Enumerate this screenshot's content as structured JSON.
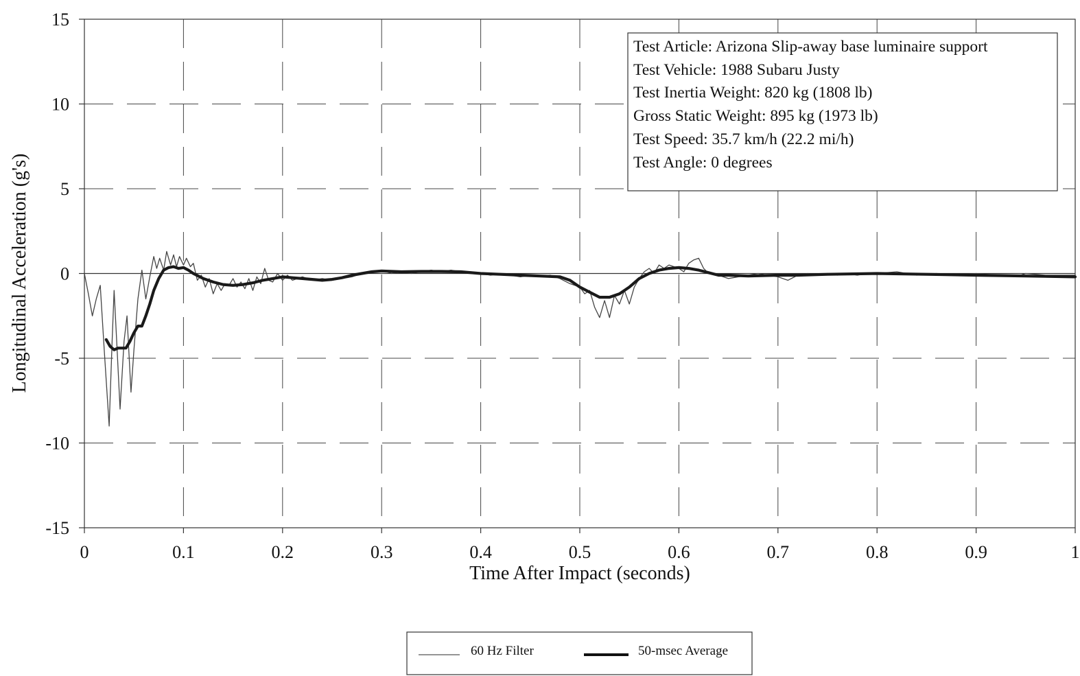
{
  "chart_data": {
    "type": "line",
    "xlabel": "Time After Impact (seconds)",
    "ylabel": "Longitudinal Acceleration (g's)",
    "xlim": [
      0,
      1
    ],
    "ylim": [
      -15,
      15
    ],
    "xticks": [
      0,
      0.1,
      0.2,
      0.3,
      0.4,
      0.5,
      0.6,
      0.7,
      0.8,
      0.9,
      1
    ],
    "xtick_labels": [
      "0",
      "0.1",
      "0.2",
      "0.3",
      "0.4",
      "0.5",
      "0.6",
      "0.7",
      "0.8",
      "0.9",
      "1"
    ],
    "yticks": [
      15,
      10,
      5,
      0,
      -5,
      -10,
      -15
    ],
    "ytick_labels": [
      "15",
      "10",
      "5",
      "0",
      "-5",
      "-10",
      "-15"
    ],
    "grid": "dashed",
    "legend_position": "bottom-center",
    "annotation": [
      "Test Article:  Arizona Slip-away base luminaire support",
      "Test Vehicle:  1988 Subaru Justy",
      "Test Inertia Weight:  820 kg (1808 lb)",
      "Gross Static Weight:  895 kg (1973 lb)",
      "Test Speed:  35.7 km/h (22.2 mi/h)",
      "Test Angle:  0 degrees"
    ],
    "series": [
      {
        "name": "60 Hz Filter",
        "style": "thin",
        "color": "#444444",
        "points": [
          [
            0,
            0
          ],
          [
            0.004,
            -1.2
          ],
          [
            0.008,
            -2.5
          ],
          [
            0.012,
            -1.5
          ],
          [
            0.016,
            -0.7
          ],
          [
            0.02,
            -4.5
          ],
          [
            0.025,
            -9.0
          ],
          [
            0.028,
            -4.0
          ],
          [
            0.03,
            -1.0
          ],
          [
            0.033,
            -4.5
          ],
          [
            0.036,
            -8.0
          ],
          [
            0.04,
            -4.0
          ],
          [
            0.043,
            -2.5
          ],
          [
            0.047,
            -7.0
          ],
          [
            0.05,
            -4.5
          ],
          [
            0.054,
            -1.5
          ],
          [
            0.058,
            0.2
          ],
          [
            0.062,
            -1.5
          ],
          [
            0.066,
            -0.2
          ],
          [
            0.07,
            1.0
          ],
          [
            0.073,
            0.3
          ],
          [
            0.076,
            0.9
          ],
          [
            0.08,
            0.2
          ],
          [
            0.083,
            1.3
          ],
          [
            0.087,
            0.5
          ],
          [
            0.09,
            1.1
          ],
          [
            0.093,
            0.4
          ],
          [
            0.096,
            1.0
          ],
          [
            0.1,
            0.5
          ],
          [
            0.103,
            0.9
          ],
          [
            0.107,
            0.4
          ],
          [
            0.11,
            0.6
          ],
          [
            0.114,
            -0.4
          ],
          [
            0.118,
            -0.1
          ],
          [
            0.122,
            -0.8
          ],
          [
            0.126,
            -0.3
          ],
          [
            0.13,
            -1.2
          ],
          [
            0.134,
            -0.6
          ],
          [
            0.138,
            -1.0
          ],
          [
            0.142,
            -0.6
          ],
          [
            0.146,
            -0.7
          ],
          [
            0.15,
            -0.3
          ],
          [
            0.154,
            -0.8
          ],
          [
            0.158,
            -0.5
          ],
          [
            0.162,
            -0.9
          ],
          [
            0.166,
            -0.3
          ],
          [
            0.17,
            -1.0
          ],
          [
            0.174,
            -0.2
          ],
          [
            0.178,
            -0.6
          ],
          [
            0.182,
            0.3
          ],
          [
            0.186,
            -0.4
          ],
          [
            0.19,
            -0.5
          ],
          [
            0.195,
            0.0
          ],
          [
            0.2,
            -0.4
          ],
          [
            0.205,
            -0.1
          ],
          [
            0.21,
            -0.4
          ],
          [
            0.22,
            -0.2
          ],
          [
            0.23,
            -0.4
          ],
          [
            0.24,
            -0.3
          ],
          [
            0.25,
            -0.4
          ],
          [
            0.26,
            -0.3
          ],
          [
            0.27,
            -0.2
          ],
          [
            0.28,
            0.0
          ],
          [
            0.29,
            0.1
          ],
          [
            0.3,
            0.2
          ],
          [
            0.31,
            0.0
          ],
          [
            0.32,
            0.1
          ],
          [
            0.33,
            0.0
          ],
          [
            0.34,
            0.1
          ],
          [
            0.35,
            0.2
          ],
          [
            0.36,
            0.1
          ],
          [
            0.37,
            0.2
          ],
          [
            0.38,
            0.1
          ],
          [
            0.39,
            0.0
          ],
          [
            0.4,
            0.0
          ],
          [
            0.41,
            -0.1
          ],
          [
            0.42,
            0.0
          ],
          [
            0.43,
            -0.1
          ],
          [
            0.44,
            -0.2
          ],
          [
            0.45,
            -0.1
          ],
          [
            0.46,
            -0.2
          ],
          [
            0.47,
            -0.1
          ],
          [
            0.48,
            -0.3
          ],
          [
            0.49,
            -0.6
          ],
          [
            0.5,
            -0.8
          ],
          [
            0.505,
            -1.2
          ],
          [
            0.51,
            -1.0
          ],
          [
            0.515,
            -2.0
          ],
          [
            0.52,
            -2.6
          ],
          [
            0.525,
            -1.6
          ],
          [
            0.53,
            -2.6
          ],
          [
            0.535,
            -1.3
          ],
          [
            0.54,
            -1.8
          ],
          [
            0.545,
            -1.0
          ],
          [
            0.55,
            -1.8
          ],
          [
            0.555,
            -0.8
          ],
          [
            0.56,
            -0.3
          ],
          [
            0.565,
            0.1
          ],
          [
            0.57,
            0.3
          ],
          [
            0.575,
            0.0
          ],
          [
            0.58,
            0.5
          ],
          [
            0.585,
            0.3
          ],
          [
            0.59,
            0.5
          ],
          [
            0.595,
            0.4
          ],
          [
            0.6,
            0.3
          ],
          [
            0.605,
            0.1
          ],
          [
            0.61,
            0.6
          ],
          [
            0.615,
            0.8
          ],
          [
            0.62,
            0.9
          ],
          [
            0.625,
            0.3
          ],
          [
            0.63,
            0.0
          ],
          [
            0.64,
            -0.1
          ],
          [
            0.65,
            -0.3
          ],
          [
            0.66,
            -0.2
          ],
          [
            0.67,
            -0.1
          ],
          [
            0.68,
            0.0
          ],
          [
            0.69,
            -0.1
          ],
          [
            0.7,
            -0.2
          ],
          [
            0.71,
            -0.4
          ],
          [
            0.72,
            -0.1
          ],
          [
            0.73,
            0.0
          ],
          [
            0.74,
            -0.1
          ],
          [
            0.75,
            0.0
          ],
          [
            0.76,
            -0.1
          ],
          [
            0.77,
            0.0
          ],
          [
            0.78,
            -0.1
          ],
          [
            0.79,
            0.0
          ],
          [
            0.8,
            0.0
          ],
          [
            0.82,
            0.1
          ],
          [
            0.84,
            -0.1
          ],
          [
            0.86,
            0.0
          ],
          [
            0.88,
            -0.1
          ],
          [
            0.9,
            0.0
          ],
          [
            0.92,
            -0.1
          ],
          [
            0.94,
            -0.2
          ],
          [
            0.95,
            0.0
          ],
          [
            0.97,
            -0.1
          ],
          [
            1.0,
            -0.1
          ]
        ]
      },
      {
        "name": "50-msec Average",
        "style": "thick",
        "color": "#1a1a1a",
        "points": [
          [
            0.022,
            -3.9
          ],
          [
            0.026,
            -4.3
          ],
          [
            0.03,
            -4.5
          ],
          [
            0.034,
            -4.4
          ],
          [
            0.038,
            -4.4
          ],
          [
            0.042,
            -4.4
          ],
          [
            0.046,
            -4.0
          ],
          [
            0.05,
            -3.5
          ],
          [
            0.054,
            -3.1
          ],
          [
            0.058,
            -3.1
          ],
          [
            0.062,
            -2.5
          ],
          [
            0.066,
            -1.8
          ],
          [
            0.07,
            -1.0
          ],
          [
            0.075,
            -0.3
          ],
          [
            0.08,
            0.2
          ],
          [
            0.085,
            0.35
          ],
          [
            0.09,
            0.4
          ],
          [
            0.095,
            0.3
          ],
          [
            0.1,
            0.35
          ],
          [
            0.105,
            0.2
          ],
          [
            0.11,
            0.0
          ],
          [
            0.12,
            -0.3
          ],
          [
            0.13,
            -0.5
          ],
          [
            0.14,
            -0.65
          ],
          [
            0.15,
            -0.7
          ],
          [
            0.16,
            -0.65
          ],
          [
            0.17,
            -0.55
          ],
          [
            0.18,
            -0.4
          ],
          [
            0.19,
            -0.3
          ],
          [
            0.2,
            -0.2
          ],
          [
            0.21,
            -0.25
          ],
          [
            0.22,
            -0.3
          ],
          [
            0.23,
            -0.35
          ],
          [
            0.24,
            -0.4
          ],
          [
            0.25,
            -0.35
          ],
          [
            0.26,
            -0.25
          ],
          [
            0.27,
            -0.1
          ],
          [
            0.28,
            0.0
          ],
          [
            0.29,
            0.1
          ],
          [
            0.3,
            0.15
          ],
          [
            0.32,
            0.1
          ],
          [
            0.34,
            0.12
          ],
          [
            0.36,
            0.12
          ],
          [
            0.38,
            0.1
          ],
          [
            0.4,
            0.0
          ],
          [
            0.42,
            -0.05
          ],
          [
            0.44,
            -0.1
          ],
          [
            0.46,
            -0.15
          ],
          [
            0.48,
            -0.2
          ],
          [
            0.49,
            -0.4
          ],
          [
            0.5,
            -0.8
          ],
          [
            0.51,
            -1.1
          ],
          [
            0.52,
            -1.4
          ],
          [
            0.53,
            -1.4
          ],
          [
            0.54,
            -1.2
          ],
          [
            0.55,
            -0.8
          ],
          [
            0.56,
            -0.3
          ],
          [
            0.57,
            0.0
          ],
          [
            0.58,
            0.2
          ],
          [
            0.59,
            0.3
          ],
          [
            0.6,
            0.35
          ],
          [
            0.61,
            0.3
          ],
          [
            0.62,
            0.2
          ],
          [
            0.63,
            0.05
          ],
          [
            0.64,
            -0.1
          ],
          [
            0.65,
            -0.1
          ],
          [
            0.67,
            -0.15
          ],
          [
            0.7,
            -0.1
          ],
          [
            0.72,
            -0.1
          ],
          [
            0.75,
            -0.05
          ],
          [
            0.8,
            0.0
          ],
          [
            0.85,
            -0.05
          ],
          [
            0.9,
            -0.1
          ],
          [
            0.95,
            -0.15
          ],
          [
            1.0,
            -0.2
          ]
        ]
      }
    ]
  }
}
